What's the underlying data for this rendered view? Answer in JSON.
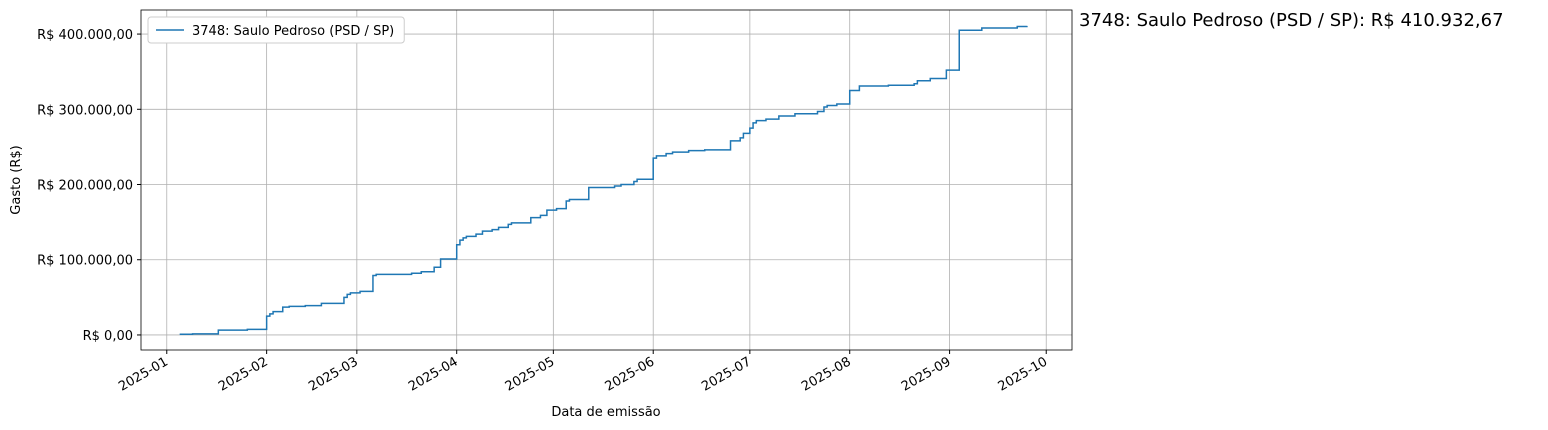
{
  "chart_data": {
    "type": "line",
    "step": true,
    "y_label": "Gasto (R$)",
    "x_label": "Data de emissão",
    "annotation": "3748: Saulo Pedroso (PSD / SP): R$ 410.932,67",
    "legend": "upper left",
    "grid": true,
    "x": [
      "2025-01-05",
      "2025-01-09",
      "2025-01-17",
      "2025-01-26",
      "2025-02-01",
      "2025-02-02",
      "2025-02-03",
      "2025-02-06",
      "2025-02-08",
      "2025-02-13",
      "2025-02-18",
      "2025-02-25",
      "2025-02-26",
      "2025-02-27",
      "2025-03-02",
      "2025-03-06",
      "2025-03-07",
      "2025-03-18",
      "2025-03-21",
      "2025-03-25",
      "2025-03-27",
      "2025-04-01",
      "2025-04-02",
      "2025-04-03",
      "2025-04-04",
      "2025-04-07",
      "2025-04-09",
      "2025-04-12",
      "2025-04-14",
      "2025-04-17",
      "2025-04-18",
      "2025-04-24",
      "2025-04-27",
      "2025-04-29",
      "2025-05-02",
      "2025-05-05",
      "2025-05-06",
      "2025-05-12",
      "2025-05-20",
      "2025-05-22",
      "2025-05-26",
      "2025-05-27",
      "2025-06-01",
      "2025-06-02",
      "2025-06-05",
      "2025-06-07",
      "2025-06-12",
      "2025-06-17",
      "2025-06-25",
      "2025-06-28",
      "2025-06-29",
      "2025-07-01",
      "2025-07-02",
      "2025-07-03",
      "2025-07-06",
      "2025-07-10",
      "2025-07-15",
      "2025-07-22",
      "2025-07-24",
      "2025-07-25",
      "2025-07-28",
      "2025-08-01",
      "2025-08-04",
      "2025-08-13",
      "2025-08-21",
      "2025-08-22",
      "2025-08-26",
      "2025-08-31",
      "2025-09-04",
      "2025-09-11",
      "2025-09-22",
      "2025-09-25"
    ],
    "series": [
      {
        "name": "3748: Saulo Pedroso (PSD / SP)",
        "color": "#1f77b4",
        "values": [
          1000,
          1500,
          6500,
          7500,
          25000,
          28000,
          31000,
          37000,
          38000,
          39000,
          42000,
          50000,
          54000,
          56000,
          58000,
          79000,
          80500,
          82000,
          84000,
          90000,
          101000,
          120000,
          126000,
          129000,
          131000,
          134000,
          138000,
          140000,
          143000,
          147000,
          149000,
          156000,
          159000,
          166000,
          168000,
          178000,
          180000,
          196000,
          198000,
          200000,
          204000,
          207000,
          235000,
          238000,
          241000,
          243000,
          245000,
          246000,
          258000,
          262000,
          268000,
          275000,
          282000,
          285000,
          287000,
          291000,
          294000,
          297000,
          303000,
          305000,
          307000,
          325000,
          331000,
          332000,
          334000,
          338000,
          341000,
          352000,
          405000,
          408000,
          410000,
          410932.67
        ]
      }
    ],
    "xlim": [
      "2024-12-24",
      "2025-10-09"
    ],
    "xticks": [
      {
        "value": "2025-01-01",
        "label": "2025-01"
      },
      {
        "value": "2025-02-01",
        "label": "2025-02"
      },
      {
        "value": "2025-03-01",
        "label": "2025-03"
      },
      {
        "value": "2025-04-01",
        "label": "2025-04"
      },
      {
        "value": "2025-05-01",
        "label": "2025-05"
      },
      {
        "value": "2025-06-01",
        "label": "2025-06"
      },
      {
        "value": "2025-07-01",
        "label": "2025-07"
      },
      {
        "value": "2025-08-01",
        "label": "2025-08"
      },
      {
        "value": "2025-09-01",
        "label": "2025-09"
      },
      {
        "value": "2025-10-01",
        "label": "2025-10"
      }
    ],
    "ylim": [
      -20000,
      432000
    ],
    "yticks": [
      {
        "value": 0,
        "label": "R$ 0,00"
      },
      {
        "value": 100000,
        "label": "R$ 100.000,00"
      },
      {
        "value": 200000,
        "label": "R$ 200.000,00"
      },
      {
        "value": 300000,
        "label": "R$ 300.000,00"
      },
      {
        "value": 400000,
        "label": "R$ 400.000,00"
      }
    ]
  }
}
